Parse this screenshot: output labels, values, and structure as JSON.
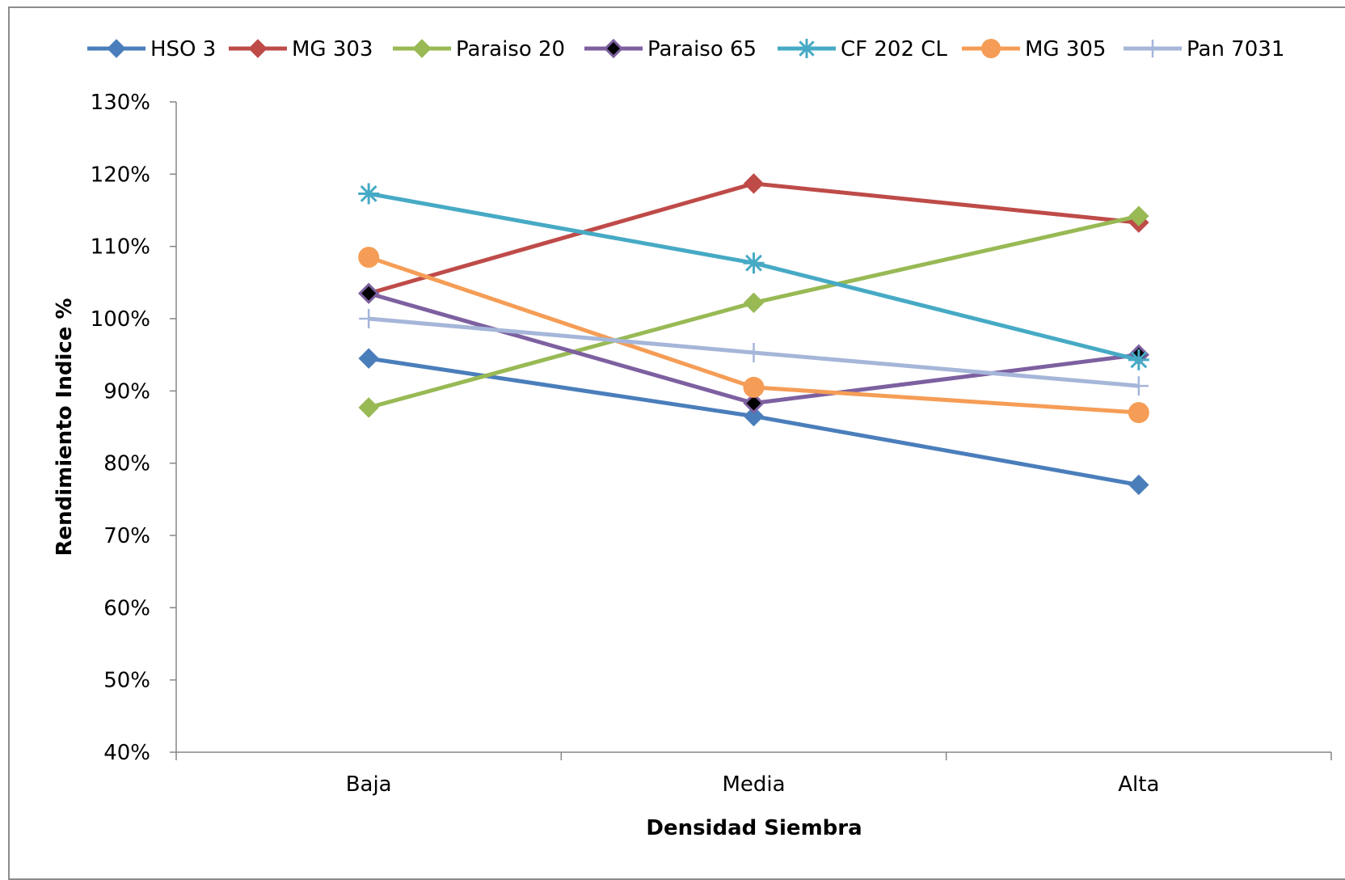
{
  "chart_data": {
    "type": "line",
    "title": "",
    "xlabel": "Densidad Siembra",
    "ylabel": "Rendimiento Indice %",
    "categories": [
      "Baja",
      "Media",
      "Alta"
    ],
    "ylim": [
      0.4,
      1.3
    ],
    "yticks": [
      0.4,
      0.5,
      0.6,
      0.7,
      0.8,
      0.9,
      1.0,
      1.1,
      1.2,
      1.3
    ],
    "ytick_labels": [
      "40%",
      "50%",
      "60%",
      "70%",
      "80%",
      "90%",
      "100%",
      "110%",
      "120%",
      "130%"
    ],
    "legend_position": "top",
    "grid": false,
    "series": [
      {
        "name": "HSO 3",
        "color": "#4A7EBB",
        "marker": "diamond",
        "values": [
          0.945,
          0.865,
          0.77
        ]
      },
      {
        "name": "MG 303",
        "color": "#BE4B48",
        "marker": "diamond",
        "values": [
          1.035,
          1.187,
          1.133
        ]
      },
      {
        "name": "Paraiso 20",
        "color": "#98B954",
        "marker": "diamond",
        "values": [
          0.877,
          1.022,
          1.142
        ]
      },
      {
        "name": "Paraiso 65",
        "color": "#7D60A0",
        "marker": "diamond-black",
        "values": [
          1.035,
          0.883,
          0.95
        ]
      },
      {
        "name": "CF 202 CL",
        "color": "#46AAC5",
        "marker": "star",
        "values": [
          1.173,
          1.077,
          0.943
        ]
      },
      {
        "name": "MG 305",
        "color": "#F59D56",
        "marker": "circle",
        "values": [
          1.085,
          0.905,
          0.87
        ]
      },
      {
        "name": "Pan 7031",
        "color": "#A5B6D9",
        "marker": "plus",
        "values": [
          1.0,
          0.953,
          0.907
        ]
      }
    ]
  }
}
